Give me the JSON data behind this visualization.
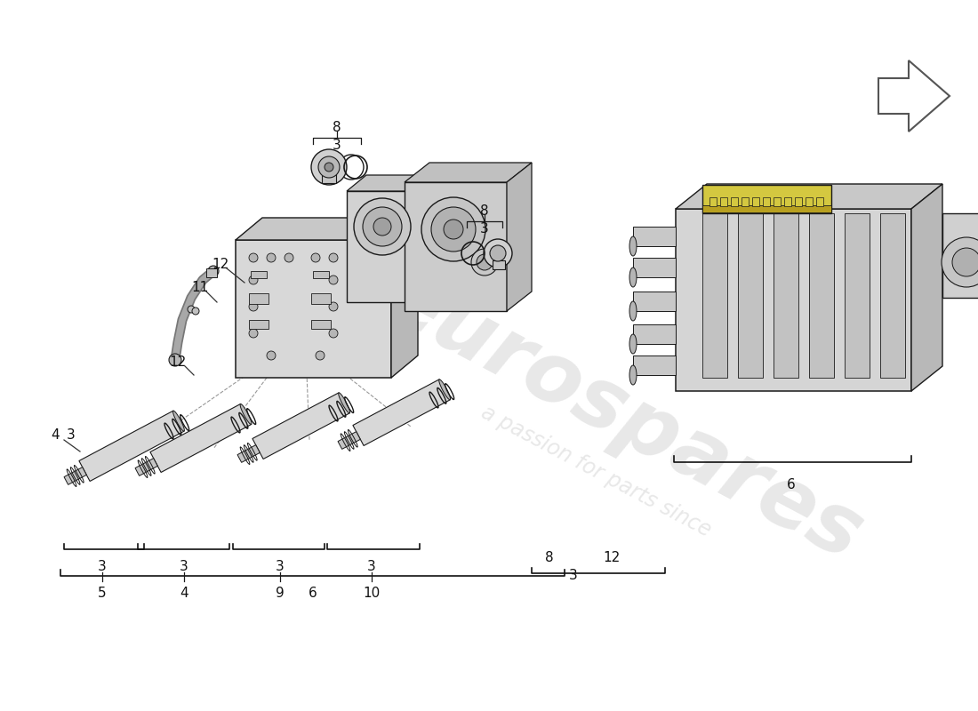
{
  "bg_color": "#ffffff",
  "lc": "#1a1a1a",
  "lc_thin": "#333333",
  "watermark1": "eurospares",
  "watermark2": "a passion for parts since",
  "wm_color": "#cccccc",
  "wm_alpha": 0.45,
  "label_fs": 11,
  "label_color": "#111111",
  "gray_light": "#e0e0e0",
  "gray_mid": "#c0c0c0",
  "gray_dark": "#909090",
  "yellow": "#d4c840",
  "arrow_color": "#555555",
  "bracket_color": "#222222"
}
